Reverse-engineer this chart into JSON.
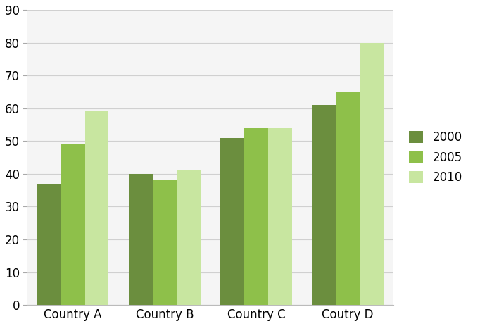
{
  "categories": [
    "Country A",
    "Country B",
    "Country C",
    "Coutry D"
  ],
  "series": {
    "2000": [
      37,
      40,
      51,
      61
    ],
    "2005": [
      49,
      38,
      54,
      65
    ],
    "2010": [
      59,
      41,
      54,
      80
    ]
  },
  "colors": {
    "2000": "#6b8e3e",
    "2005": "#8ec04a",
    "2010": "#c8e6a0"
  },
  "legend_labels": [
    "2000",
    "2005",
    "2010"
  ],
  "ylim": [
    0,
    90
  ],
  "yticks": [
    0,
    10,
    20,
    30,
    40,
    50,
    60,
    70,
    80,
    90
  ],
  "bar_width": 0.26,
  "background_color": "#ffffff",
  "plot_bg_color": "#f5f5f5",
  "grid_color": "#d0d0d0",
  "legend_fontsize": 12,
  "tick_fontsize": 12,
  "label_fontsize": 12
}
